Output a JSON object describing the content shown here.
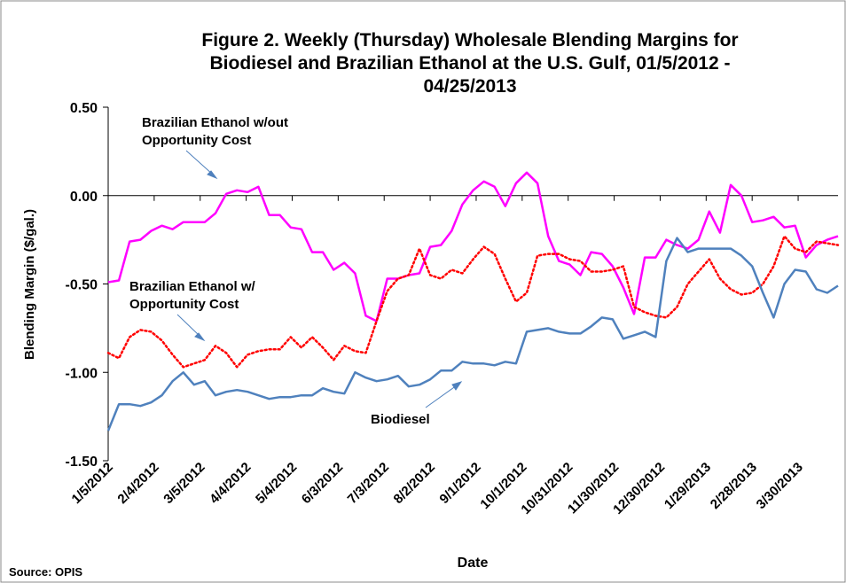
{
  "chart_data": {
    "type": "line",
    "title_lines": [
      "Figure 2. Weekly (Thursday) Wholesale Blending Margins for",
      "Biodiesel and Brazilian Ethanol at the U.S. Gulf, 01/5/2012 -",
      "04/25/2013"
    ],
    "ylabel": "Blending Margin ($/gal.)",
    "xlabel": "Date",
    "source": "Source: OPIS",
    "x": [
      "1/5/2012",
      "1/12/2012",
      "1/19/2012",
      "1/26/2012",
      "2/2/2012",
      "2/9/2012",
      "2/16/2012",
      "2/23/2012",
      "3/1/2012",
      "3/8/2012",
      "3/15/2012",
      "3/22/2012",
      "3/29/2012",
      "4/5/2012",
      "4/12/2012",
      "4/19/2012",
      "4/26/2012",
      "5/3/2012",
      "5/10/2012",
      "5/17/2012",
      "5/24/2012",
      "5/31/2012",
      "6/7/2012",
      "6/14/2012",
      "6/21/2012",
      "6/28/2012",
      "7/5/2012",
      "7/12/2012",
      "7/19/2012",
      "7/26/2012",
      "8/2/2012",
      "8/9/2012",
      "8/16/2012",
      "8/23/2012",
      "8/30/2012",
      "9/6/2012",
      "9/13/2012",
      "9/20/2012",
      "9/27/2012",
      "10/4/2012",
      "10/11/2012",
      "10/18/2012",
      "10/25/2012",
      "11/1/2012",
      "11/8/2012",
      "11/15/2012",
      "11/22/2012",
      "11/29/2012",
      "12/6/2012",
      "12/13/2012",
      "12/20/2012",
      "12/27/2012",
      "1/3/2013",
      "1/10/2013",
      "1/17/2013",
      "1/24/2013",
      "1/31/2013",
      "2/7/2013",
      "2/14/2013",
      "2/21/2013",
      "2/28/2013",
      "3/7/2013",
      "3/14/2013",
      "3/21/2013",
      "3/28/2013",
      "4/4/2013",
      "4/11/2013",
      "4/18/2013",
      "4/25/2013"
    ],
    "xlim": [
      "1/5/2012",
      "4/25/2013"
    ],
    "xticks": [
      "1/5/2012",
      "2/4/2012",
      "3/5/2012",
      "4/4/2012",
      "5/4/2012",
      "6/3/2012",
      "7/3/2012",
      "8/2/2012",
      "9/1/2012",
      "10/1/2012",
      "10/31/2012",
      "11/30/2012",
      "12/30/2012",
      "1/29/2013",
      "2/28/2013",
      "3/30/2013"
    ],
    "ylim": [
      -1.5,
      0.5
    ],
    "yticks": [
      {
        "value": 0.5,
        "label": "0.50"
      },
      {
        "value": 0,
        "label": "0.00"
      },
      {
        "value": -0.5,
        "label": "-0.50"
      },
      {
        "value": -1,
        "label": "-1.00"
      },
      {
        "value": -1.5,
        "label": "-1.50"
      }
    ],
    "series": [
      {
        "label_lines": [
          "Brazilian Ethanol w/out",
          "Opportunity Cost"
        ],
        "color": "#ff00ff",
        "dash": false,
        "values": [
          -0.49,
          -0.48,
          -0.26,
          -0.25,
          -0.2,
          -0.17,
          -0.19,
          -0.15,
          -0.15,
          -0.15,
          -0.1,
          0.01,
          0.03,
          0.02,
          0.05,
          -0.11,
          -0.11,
          -0.18,
          -0.19,
          -0.32,
          -0.32,
          -0.42,
          -0.38,
          -0.44,
          -0.68,
          -0.71,
          -0.47,
          -0.47,
          -0.45,
          -0.44,
          -0.29,
          -0.28,
          -0.2,
          -0.05,
          0.03,
          0.08,
          0.05,
          -0.06,
          0.07,
          0.13,
          0.07,
          -0.23,
          -0.37,
          -0.39,
          -0.45,
          -0.32,
          -0.33,
          -0.4,
          -0.52,
          -0.67,
          -0.35,
          -0.35,
          -0.25,
          -0.28,
          -0.3,
          -0.25,
          -0.09,
          -0.21,
          0.06,
          0,
          -0.15,
          -0.14,
          -0.12,
          -0.18,
          -0.17,
          -0.35,
          -0.28,
          -0.25,
          -0.23
        ]
      },
      {
        "label_lines": [
          "Brazilian Ethanol w/",
          "Opportunity Cost"
        ],
        "color": "#ff0000",
        "dash": true,
        "values": [
          -0.89,
          -0.92,
          -0.8,
          -0.76,
          -0.77,
          -0.82,
          -0.9,
          -0.97,
          -0.95,
          -0.93,
          -0.85,
          -0.89,
          -0.97,
          -0.9,
          -0.88,
          -0.87,
          -0.87,
          -0.8,
          -0.86,
          -0.8,
          -0.86,
          -0.93,
          -0.85,
          -0.88,
          -0.89,
          -0.71,
          -0.54,
          -0.47,
          -0.45,
          -0.3,
          -0.45,
          -0.47,
          -0.42,
          -0.44,
          -0.36,
          -0.29,
          -0.33,
          -0.47,
          -0.6,
          -0.55,
          -0.34,
          -0.33,
          -0.33,
          -0.36,
          -0.37,
          -0.43,
          -0.43,
          -0.42,
          -0.4,
          -0.63,
          -0.66,
          -0.68,
          -0.69,
          -0.63,
          -0.5,
          -0.43,
          -0.36,
          -0.47,
          -0.53,
          -0.56,
          -0.55,
          -0.5,
          -0.4,
          -0.23,
          -0.3,
          -0.32,
          -0.26,
          -0.27,
          -0.28
        ]
      },
      {
        "label_lines": [
          "Biodiesel"
        ],
        "color": "#4f81bd",
        "dash": false,
        "values": [
          -1.33,
          -1.18,
          -1.18,
          -1.19,
          -1.17,
          -1.13,
          -1.05,
          -1,
          -1.07,
          -1.05,
          -1.13,
          -1.11,
          -1.1,
          -1.11,
          -1.13,
          -1.15,
          -1.14,
          -1.14,
          -1.13,
          -1.13,
          -1.09,
          -1.11,
          -1.12,
          -1,
          -1.03,
          -1.05,
          -1.04,
          -1.02,
          -1.08,
          -1.07,
          -1.04,
          -0.99,
          -0.99,
          -0.94,
          -0.95,
          -0.95,
          -0.96,
          -0.94,
          -0.95,
          -0.77,
          -0.76,
          -0.75,
          -0.77,
          -0.78,
          -0.78,
          -0.74,
          -0.69,
          -0.7,
          -0.81,
          -0.79,
          -0.77,
          -0.8,
          -0.37,
          -0.24,
          -0.32,
          -0.3,
          -0.3,
          -0.3,
          -0.3,
          -0.34,
          -0.4,
          -0.55,
          -0.69,
          -0.5,
          -0.42,
          -0.43,
          -0.53,
          -0.55,
          -0.51
        ]
      }
    ]
  }
}
